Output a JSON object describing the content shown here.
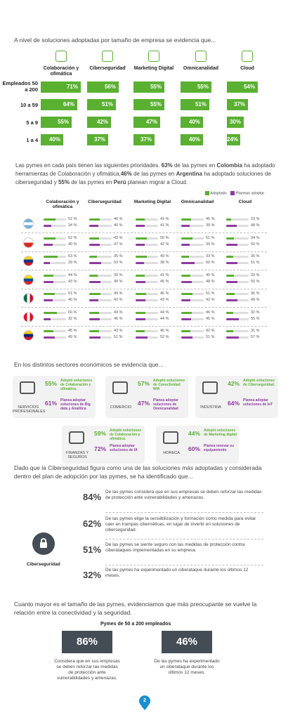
{
  "intro": "A nivel de soluciones adoptadas por tamaño de empresa se evidencia que...",
  "size_chart": {
    "solutions": [
      "Colaboración y ofimática",
      "Ciberseguridad",
      "Marketing Digital",
      "Omnicanalidad",
      "Cloud"
    ],
    "rows": [
      {
        "label": "Empleados 50 a 200",
        "values": [
          "71%",
          "56%",
          "55%",
          "55%",
          "54%"
        ],
        "nums": [
          71,
          56,
          55,
          55,
          54
        ]
      },
      {
        "label": "10 a 59",
        "values": [
          "64%",
          "51%",
          "55%",
          "51%",
          "37%"
        ],
        "nums": [
          64,
          51,
          55,
          51,
          37
        ]
      },
      {
        "label": "5 a 9",
        "values": [
          "55%",
          "42%",
          "47%",
          "40%",
          "30%"
        ],
        "nums": [
          55,
          42,
          47,
          40,
          30
        ]
      },
      {
        "label": "1 a 4",
        "values": [
          "40%",
          "37%",
          "37%",
          "40%",
          "24%"
        ],
        "nums": [
          40,
          37,
          37,
          40,
          24
        ]
      }
    ]
  },
  "country_para": {
    "t1": "Las pymes en cada país tienen las siguientes prioridades.",
    "b1": "63%",
    "t2": "de las pymes en",
    "b2": "Colombia",
    "t3": "ha adoptado herramientas de Colaboración y ofimática,",
    "b3": "46%",
    "t4": "de las pymes en",
    "b4": "Argentina",
    "t5": "ha adoptado soluciones de ciberseguridad y",
    "b5": "55%",
    "t6": "de las pymes en",
    "b6": "Perú",
    "t7": "planean migrar a Cloud."
  },
  "legend": {
    "adopted": "Adoptado",
    "planned": "Planean adoptar"
  },
  "country_chart": {
    "headers": [
      "Colaboración y ofimática",
      "Ciberseguridad",
      "Marketing Digital",
      "Omnicanalidad",
      "Cloud"
    ],
    "countries": [
      {
        "flag": "argentina-flag",
        "a": [
          "52 %",
          "46 %",
          "41 %",
          "45 %",
          "23 %"
        ],
        "p": [
          "34 %",
          "40 %",
          "41 %",
          "39 %",
          "48 %"
        ]
      },
      {
        "flag": "chile-flag",
        "a": [
          "52 %",
          "43 %",
          "50 %",
          "51 %",
          "34 %"
        ],
        "p": [
          "40 %",
          "47 %",
          "42 %",
          "39 %",
          "50 %"
        ]
      },
      {
        "flag": "colombia-flag",
        "a": [
          "63 %",
          "35 %",
          "49 %",
          "33 %",
          "30 %"
        ],
        "p": [
          "29 %",
          "53 %",
          "38 %",
          "60 %",
          "51 %"
        ]
      },
      {
        "flag": "ecuador-flag",
        "a": [
          "44 %",
          "39 %",
          "41 %",
          "40 %",
          "33 %"
        ],
        "p": [
          "43 %",
          "49 %",
          "45 %",
          "48 %",
          "50 %"
        ]
      },
      {
        "flag": "mexico-flag",
        "a": [
          "51 %",
          "49 %",
          "46 %",
          "51 %",
          "36 %"
        ],
        "p": [
          "40 %",
          "42 %",
          "43 %",
          "42 %",
          "49 %"
        ]
      },
      {
        "flag": "peru-flag",
        "a": [
          "60 %",
          "44 %",
          "44 %",
          "46 %",
          "32 %"
        ],
        "p": [
          "32 %",
          "46 %",
          "44 %",
          "45 %",
          "55 %"
        ]
      },
      {
        "flag": "venezuela-flag",
        "a": [
          "45 %",
          "43 %",
          "40 %",
          "42 %",
          "31 %"
        ],
        "p": [
          "49 %",
          "51 %",
          "52 %",
          "51 %",
          "57 %"
        ]
      }
    ]
  },
  "sectors_intro": "En los distintos sectores económicos se evidencia que...",
  "sectors": [
    {
      "name": "SERVICIOS PROFESIONALES",
      "icon": "people-icon",
      "ap": "55%",
      "at": "Adoptó soluciones de Colaboración y ofimática.",
      "pp": "61%",
      "pt": "Planea adoptar soluciones de Big data y Analítica"
    },
    {
      "name": "COMERCIO",
      "icon": "store-icon",
      "ap": "57%",
      "at": "Adoptó soluciones de Conectividad Wifi",
      "pp": "47%",
      "pt": "Planea adoptar soluciones de Omnicanalidad"
    },
    {
      "name": "INDUSTRIA",
      "icon": "factory-icon",
      "ap": "42%",
      "at": "Adoptó soluciones de Ciberseguridad.",
      "pp": "64%",
      "pt": "Planea adoptar soluciones de IoT"
    },
    {
      "name": "FINANZAS Y SEGUROS",
      "icon": "finance-icon",
      "ap": "59%",
      "at": "Adoptó soluciones de Colaboración y ofimática.",
      "pp": "72%",
      "pt": "Planea adoptar soluciones de IA"
    },
    {
      "name": "HORECA",
      "icon": "restaurant-icon",
      "ap": "44%",
      "at": "Adoptó soluciones de Marketing digital",
      "pp": "60%",
      "pt": "Planea renovar su equipamiento"
    }
  ],
  "cyber_intro": "Dado que la Ciberseguridad figura como una de las soluciones más adoptadas y considerada dentro del plan de adopción por las pymes, se ha identificado que...",
  "cyber_label": "Ciberseguridad",
  "cyber_stats": [
    {
      "pct": "84%",
      "text": "De las pymes considera que en sus empresas se deben reforzar las medidas de protección ante vulnerabilidades y amenazas."
    },
    {
      "pct": "62%",
      "text": "De las pymes elige la sensibilización y formación como medida para evitar caer en trampas cibernéticas, en lugar de invertir en soluciones de ciberseguridad."
    },
    {
      "pct": "51%",
      "text": "De las pymes se siente seguro con las medidas de protección contra ciberataques implementadas en su empresa."
    },
    {
      "pct": "32%",
      "text": "De las pymes ha experimentado un ciberataque durante los últimos 12 meses."
    }
  ],
  "size_intro": "Cuanto mayor es el tamaño de las pymes, evidenciamos que más preocupante se vuelve la relación entre la conectividad y la seguridad.",
  "big_title": "Pymes de 50 a 200 empleados",
  "big_stats": [
    {
      "pct": "86%",
      "text": "Considera que en sus empresas se deben reforzar las medidas de protección ante vulnerabilidades y amenazas."
    },
    {
      "pct": "46%",
      "text": "De las pymes ha experimentado un ciberataque durante los últimos 12 meses."
    }
  ],
  "page_number": "2",
  "colors": {
    "green": "#5ab031",
    "purple": "#8e3b9e",
    "dark": "#444d56"
  }
}
